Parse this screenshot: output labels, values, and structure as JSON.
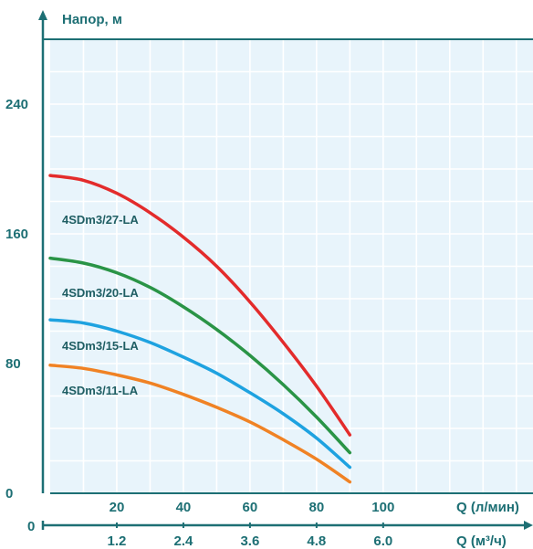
{
  "chart_data": {
    "type": "line",
    "y_axis": {
      "title": "Напор, м",
      "ticks": [
        0,
        80,
        160,
        240
      ],
      "range": [
        0,
        280
      ]
    },
    "x_axis_primary": {
      "title": "Q (л/мин)",
      "ticks": [
        20,
        40,
        60,
        80,
        100
      ],
      "range": [
        0,
        145
      ]
    },
    "x_axis_secondary": {
      "title": "Q (м³/ч)",
      "origin_label": "0",
      "ticks": [
        "1.2",
        "2.4",
        "3.6",
        "4.8",
        "6.0"
      ],
      "tick_values": [
        1.2,
        2.4,
        3.6,
        4.8,
        6.0
      ]
    },
    "grid": true,
    "colors": {
      "axis": "#1d6f74",
      "plot_background": "#e8f4fb",
      "grid": "#ffffff"
    },
    "series": [
      {
        "name": "4SDm3/27-LA",
        "color": "#e32b2b",
        "x": [
          0,
          10,
          20,
          30,
          40,
          50,
          60,
          70,
          80,
          90
        ],
        "y": [
          196,
          193,
          185,
          173,
          158,
          140,
          118,
          93,
          66,
          36
        ]
      },
      {
        "name": "4SDm3/20-LA",
        "color": "#2a9446",
        "x": [
          0,
          10,
          20,
          30,
          40,
          50,
          60,
          70,
          80,
          90
        ],
        "y": [
          145,
          142,
          136,
          127,
          115,
          101,
          85,
          67,
          47,
          25
        ]
      },
      {
        "name": "4SDm3/15-LA",
        "color": "#1ea2e0",
        "x": [
          0,
          10,
          20,
          30,
          40,
          50,
          60,
          70,
          80,
          90
        ],
        "y": [
          107,
          105,
          100,
          93,
          84,
          74,
          62,
          49,
          34,
          16
        ]
      },
      {
        "name": "4SDm3/11-LA",
        "color": "#f08224",
        "x": [
          0,
          10,
          20,
          30,
          40,
          50,
          60,
          70,
          80,
          90
        ],
        "y": [
          79,
          77,
          73,
          68,
          61,
          53,
          44,
          33,
          21,
          7
        ]
      }
    ]
  }
}
